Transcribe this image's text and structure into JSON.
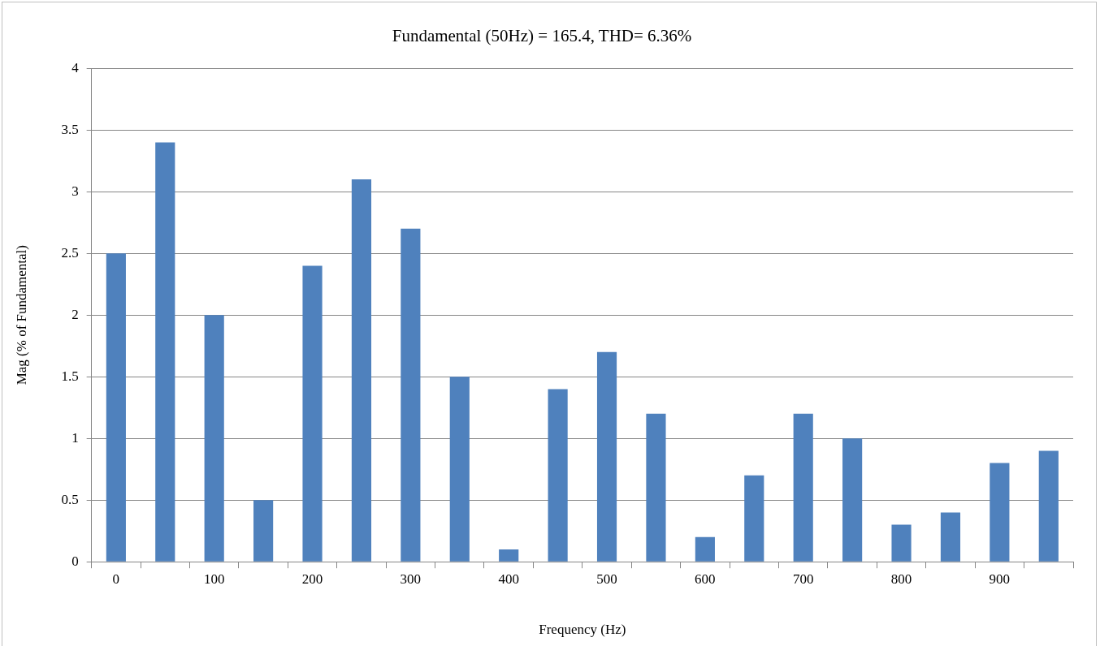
{
  "chart_data": {
    "type": "bar",
    "title": "Fundamental (50Hz) = 165.4, THD= 6.36%",
    "xlabel": "Frequency (Hz)",
    "ylabel": "Mag (% of Fundamental)",
    "categories": [
      "0",
      null,
      "100",
      null,
      "200",
      null,
      "300",
      null,
      "400",
      null,
      "500",
      null,
      "600",
      null,
      "700",
      null,
      "800",
      null,
      "900",
      null
    ],
    "values": [
      2.5,
      3.4,
      2.0,
      0.5,
      2.4,
      3.1,
      2.7,
      1.5,
      0.1,
      1.4,
      1.7,
      1.2,
      0.2,
      0.7,
      1.2,
      1.0,
      0.3,
      0.4,
      0.8,
      0.9
    ],
    "color": "#4f81bd",
    "ylim": [
      0,
      4
    ],
    "yticks": [
      0,
      0.5,
      1,
      1.5,
      2,
      2.5,
      3,
      3.5,
      4
    ],
    "grid": "y",
    "legend": false
  }
}
